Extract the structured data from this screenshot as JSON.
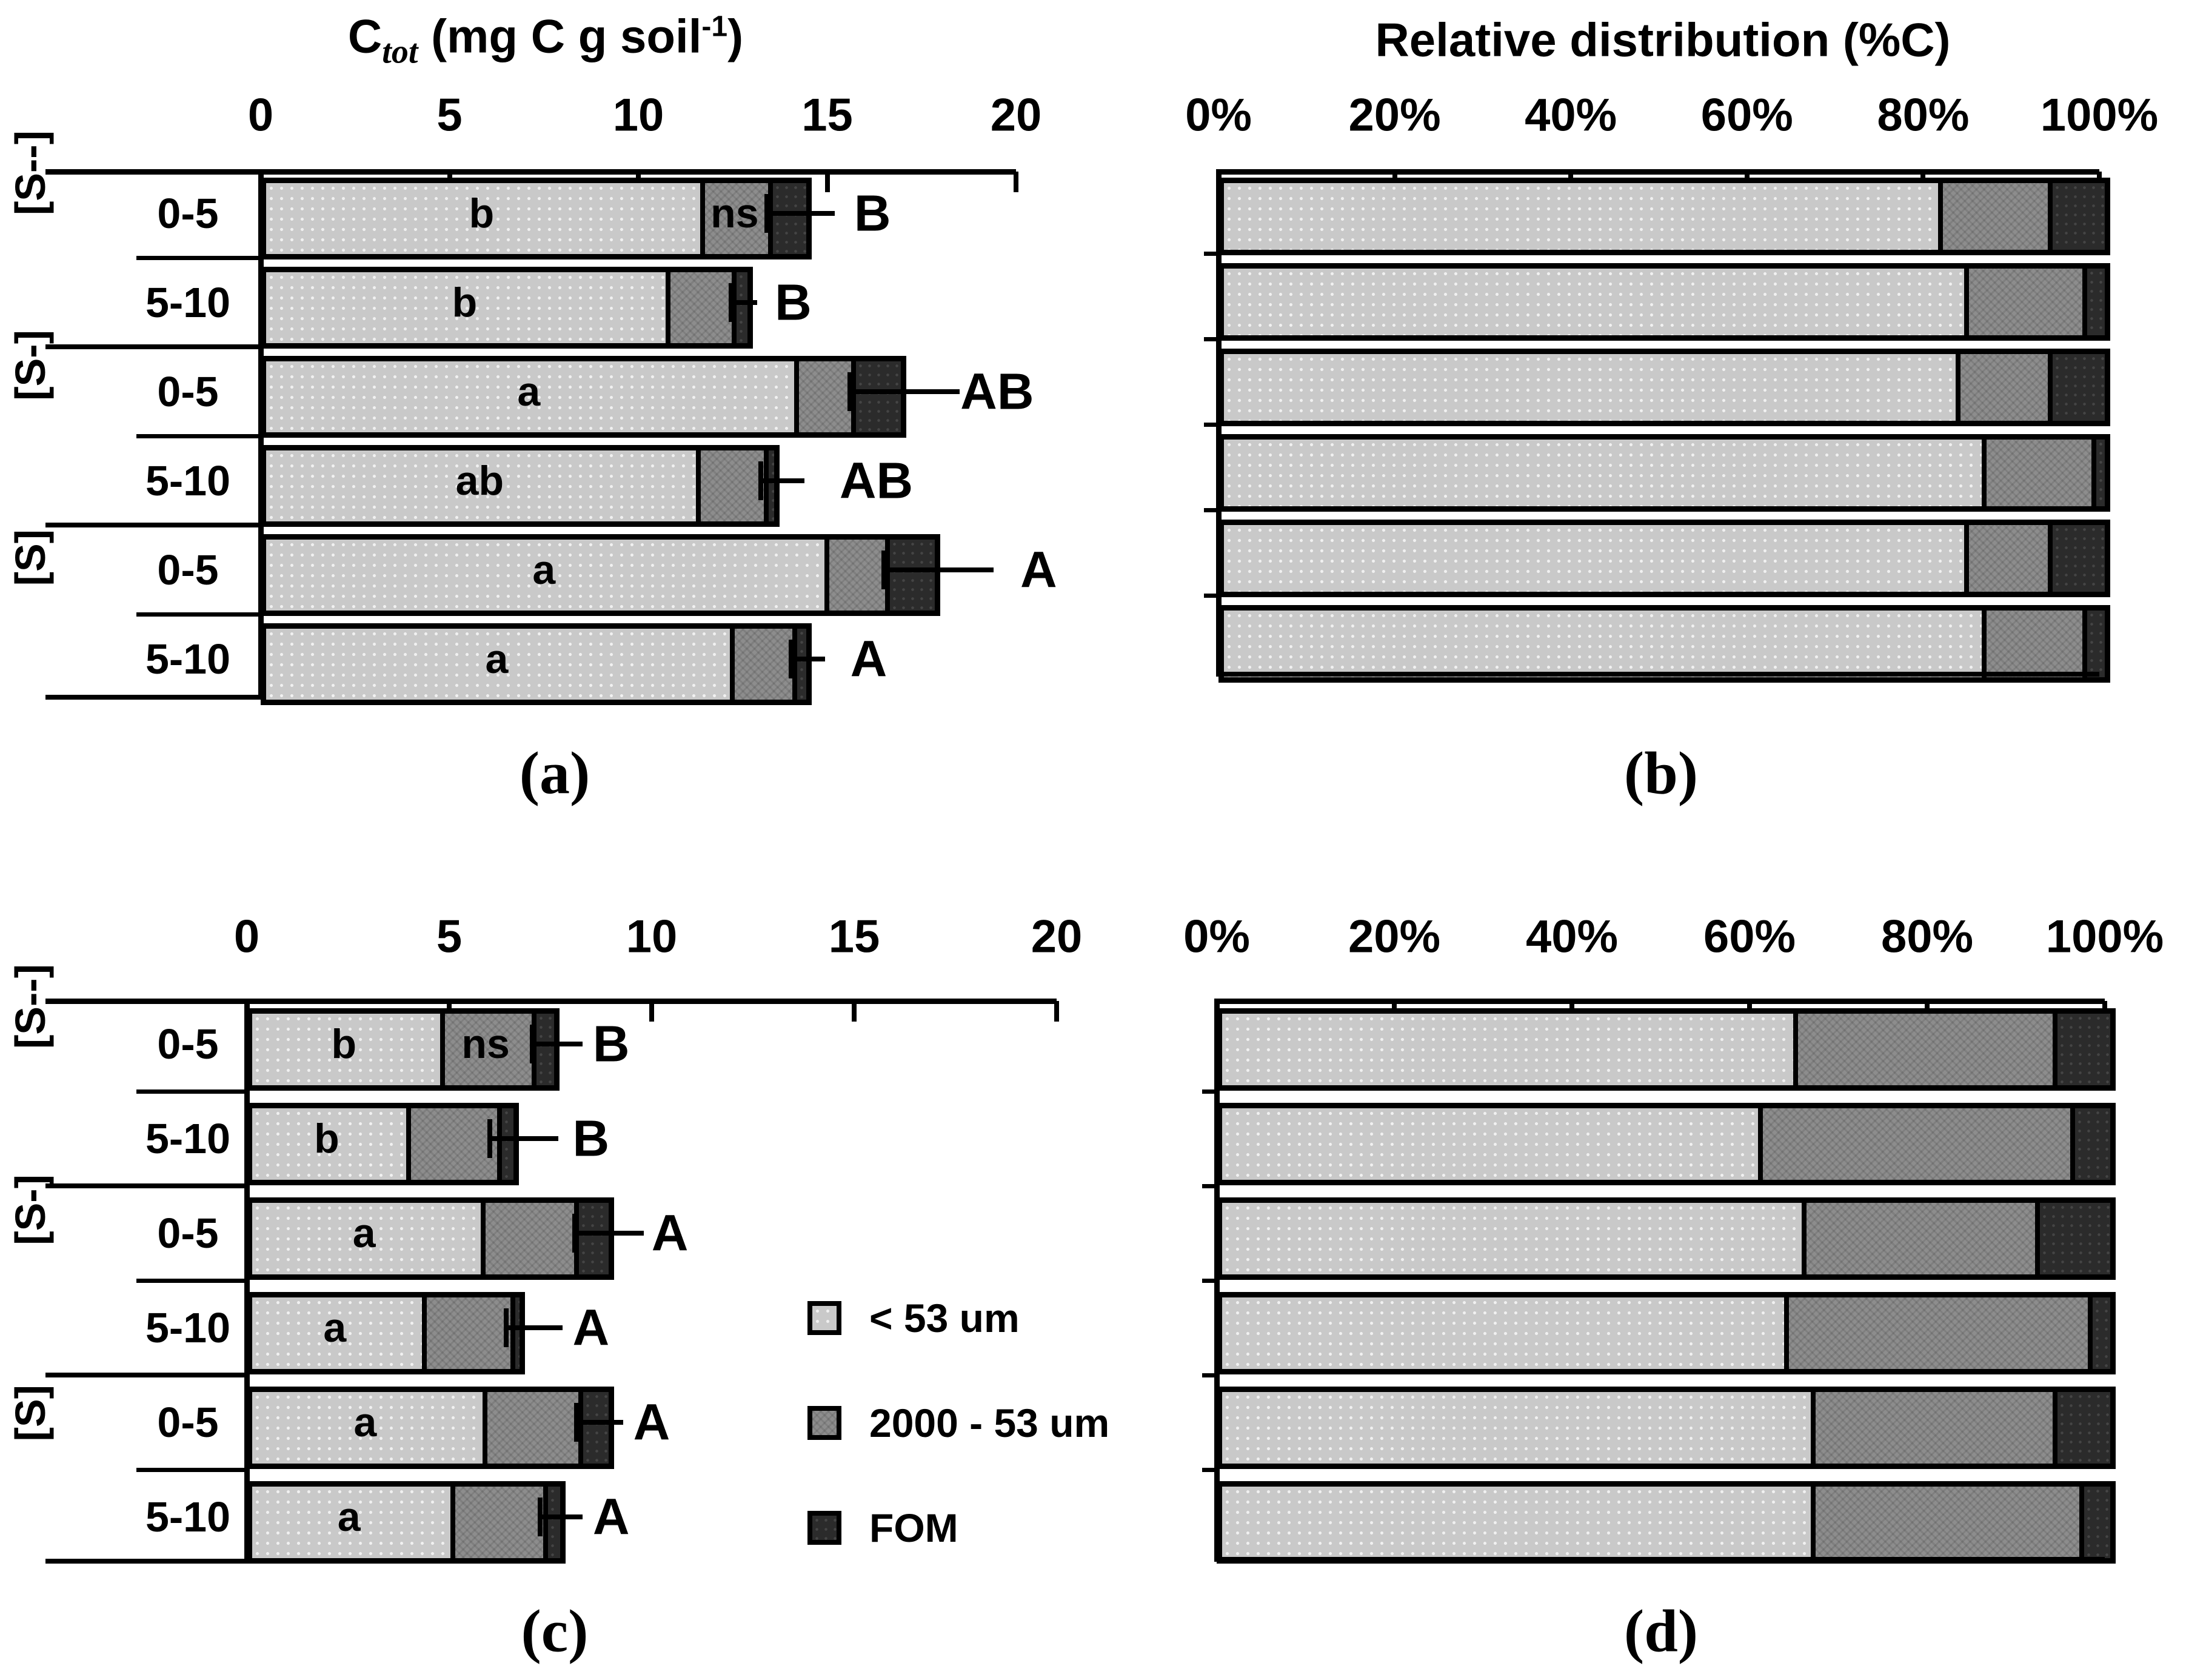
{
  "figure": {
    "description": "Soil carbon fractions: total C and relative distribution by particle-size fraction for treatments [S--], [S-], [S] at depths 0-5 and 5-10"
  },
  "colors": {
    "lt53": "#c9c9c9",
    "s2000": "#8d8d8d",
    "fom": "#2b2b2b",
    "line": "#000000",
    "background": "#ffffff"
  },
  "legend": {
    "items": [
      {
        "key": "lt53",
        "label": "< 53 um"
      },
      {
        "key": "s2000",
        "label": "2000 - 53 um"
      },
      {
        "key": "fom",
        "label": "FOM"
      }
    ]
  },
  "chart_data": [
    {
      "id": "a",
      "type": "bar",
      "orientation": "horizontal-stacked",
      "title": "Ctot (mg C g soil-1)",
      "title_parts": {
        "lead": "C",
        "sub": "tot",
        "mid": " (mg C g soil",
        "sup": "-1",
        "end": ")"
      },
      "xlim": [
        0,
        20
      ],
      "xticks": [
        "0",
        "5",
        "10",
        "15",
        "20"
      ],
      "xtick_values": [
        0,
        5,
        10,
        15,
        20
      ],
      "ylabels": {
        "groups": [
          "[S--]",
          "[S-]",
          "[S]"
        ],
        "depths": [
          "0-5",
          "5-10"
        ]
      },
      "series_keys": [
        "lt53",
        "s2000",
        "fom"
      ],
      "caption": "(a)",
      "rows": [
        {
          "group": "[S--]",
          "depth": "0-5",
          "lt53": 11.7,
          "s2000": 1.7,
          "fom": 0.9,
          "inbar_lt53": "b",
          "inbar_s2000": "ns",
          "err_cap": 13.4,
          "err_end": 15.2,
          "sig": "B",
          "sig_x": 16.2
        },
        {
          "group": "[S--]",
          "depth": "5-10",
          "lt53": 10.8,
          "s2000": 1.65,
          "fom": 0.3,
          "inbar_lt53": "b",
          "err_cap": 12.45,
          "err_end": 13.15,
          "sig": "B",
          "sig_x": 14.1
        },
        {
          "group": "[S-]",
          "depth": "0-5",
          "lt53": 14.2,
          "s2000": 1.4,
          "fom": 1.2,
          "inbar_lt53": "a",
          "err_cap": 15.6,
          "err_end": 18.5,
          "sig": "AB",
          "sig_x": 19.5
        },
        {
          "group": "[S-]",
          "depth": "5-10",
          "lt53": 11.6,
          "s2000": 1.7,
          "fom": 0.15,
          "inbar_lt53": "ab",
          "err_cap": 13.25,
          "err_end": 14.4,
          "sig": "AB",
          "sig_x": 16.3
        },
        {
          "group": "[S]",
          "depth": "0-5",
          "lt53": 15.0,
          "s2000": 1.5,
          "fom": 1.2,
          "inbar_lt53": "a",
          "err_cap": 16.5,
          "err_end": 19.4,
          "sig": "A",
          "sig_x": 20.6
        },
        {
          "group": "[S]",
          "depth": "5-10",
          "lt53": 12.5,
          "s2000": 1.55,
          "fom": 0.25,
          "inbar_lt53": "a",
          "err_cap": 14.05,
          "err_end": 14.95,
          "sig": "A",
          "sig_x": 16.1
        }
      ]
    },
    {
      "id": "b",
      "type": "bar",
      "orientation": "horizontal-stacked-100",
      "title": "Relative distribution (%C)",
      "xlim": [
        0,
        100
      ],
      "xticks": [
        "0%",
        "20%",
        "40%",
        "60%",
        "80%",
        "100%"
      ],
      "xtick_values": [
        0,
        20,
        40,
        60,
        80,
        100
      ],
      "series_keys": [
        "lt53",
        "s2000",
        "fom"
      ],
      "caption": "(b)",
      "rows": [
        {
          "lt53": 82,
          "s2000": 12,
          "fom": 6
        },
        {
          "lt53": 85,
          "s2000": 13,
          "fom": 2
        },
        {
          "lt53": 84,
          "s2000": 10,
          "fom": 6
        },
        {
          "lt53": 87,
          "s2000": 12,
          "fom": 1
        },
        {
          "lt53": 85,
          "s2000": 9,
          "fom": 6
        },
        {
          "lt53": 87,
          "s2000": 11,
          "fom": 2
        }
      ]
    },
    {
      "id": "c",
      "type": "bar",
      "orientation": "horizontal-stacked",
      "title": "",
      "xlim": [
        0,
        20
      ],
      "xticks": [
        "0",
        "5",
        "10",
        "15",
        "20"
      ],
      "xtick_values": [
        0,
        5,
        10,
        15,
        20
      ],
      "ylabels": {
        "groups": [
          "[S--]",
          "[S-]",
          "[S]"
        ],
        "depths": [
          "0-5",
          "5-10"
        ]
      },
      "series_keys": [
        "lt53",
        "s2000",
        "fom"
      ],
      "caption": "(c)",
      "rows": [
        {
          "group": "[S--]",
          "depth": "0-5",
          "lt53": 4.8,
          "s2000": 2.2,
          "fom": 0.45,
          "inbar_lt53": "b",
          "inbar_s2000": "ns",
          "err_cap": 7.05,
          "err_end": 8.3,
          "sig": "B",
          "sig_x": 9.0
        },
        {
          "group": "[S--]",
          "depth": "5-10",
          "lt53": 3.95,
          "s2000": 2.2,
          "fom": 0.3,
          "inbar_lt53": "b",
          "err_cap": 6.0,
          "err_end": 7.7,
          "sig": "B",
          "sig_x": 8.5
        },
        {
          "group": "[S-]",
          "depth": "0-5",
          "lt53": 5.8,
          "s2000": 2.25,
          "fom": 0.75,
          "inbar_lt53": "a",
          "err_cap": 8.1,
          "err_end": 9.8,
          "sig": "A",
          "sig_x": 10.45
        },
        {
          "group": "[S-]",
          "depth": "5-10",
          "lt53": 4.35,
          "s2000": 2.15,
          "fom": 0.1,
          "inbar_lt53": "a",
          "err_cap": 6.4,
          "err_end": 7.8,
          "sig": "A",
          "sig_x": 8.5
        },
        {
          "group": "[S]",
          "depth": "0-5",
          "lt53": 5.85,
          "s2000": 2.3,
          "fom": 0.65,
          "inbar_lt53": "a",
          "err_cap": 8.15,
          "err_end": 9.3,
          "sig": "A",
          "sig_x": 10.0
        },
        {
          "group": "[S]",
          "depth": "5-10",
          "lt53": 5.05,
          "s2000": 2.25,
          "fom": 0.3,
          "inbar_lt53": "a",
          "err_cap": 7.25,
          "err_end": 8.3,
          "sig": "A",
          "sig_x": 9.0
        }
      ]
    },
    {
      "id": "d",
      "type": "bar",
      "orientation": "horizontal-stacked-100",
      "title": "",
      "xlim": [
        0,
        100
      ],
      "xticks": [
        "0%",
        "20%",
        "40%",
        "60%",
        "80%",
        "100%"
      ],
      "xtick_values": [
        0,
        20,
        40,
        60,
        80,
        100
      ],
      "series_keys": [
        "lt53",
        "s2000",
        "fom"
      ],
      "caption": "(d)",
      "rows": [
        {
          "lt53": 65,
          "s2000": 29,
          "fom": 6
        },
        {
          "lt53": 61,
          "s2000": 35,
          "fom": 4
        },
        {
          "lt53": 66,
          "s2000": 26,
          "fom": 8
        },
        {
          "lt53": 64,
          "s2000": 34,
          "fom": 2
        },
        {
          "lt53": 67,
          "s2000": 27,
          "fom": 6
        },
        {
          "lt53": 67,
          "s2000": 30,
          "fom": 3
        }
      ]
    }
  ]
}
